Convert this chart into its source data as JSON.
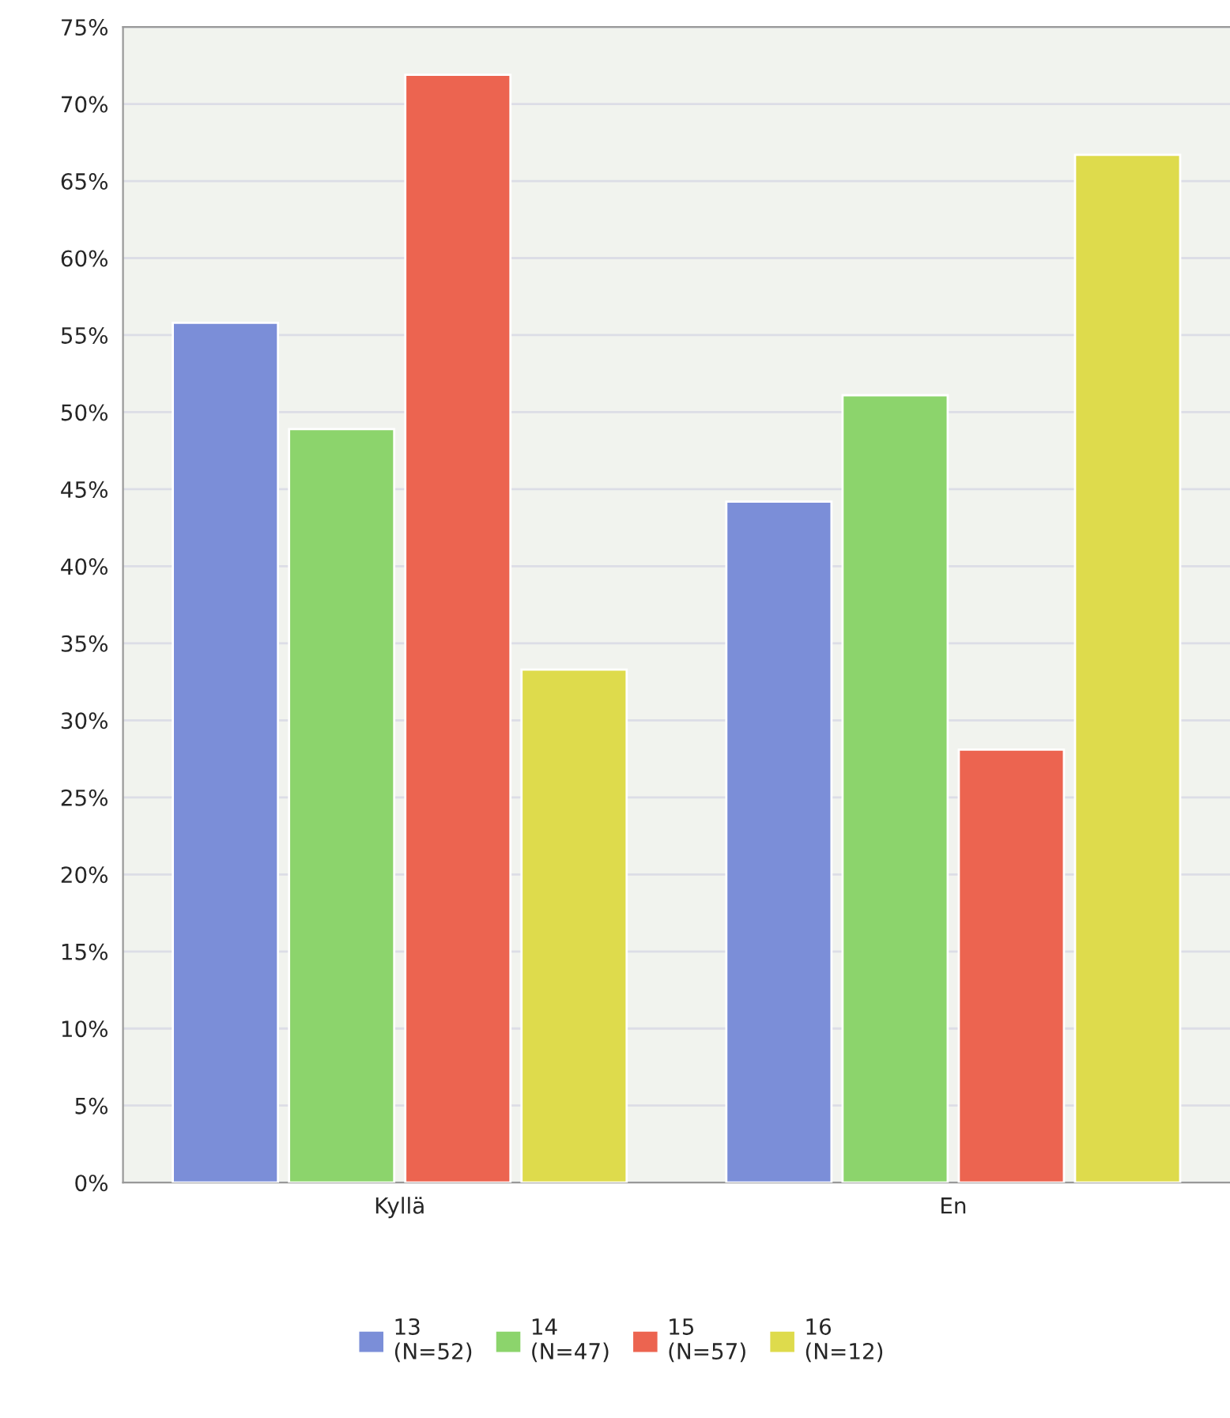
{
  "chart_data": {
    "type": "bar",
    "categories": [
      "Kyllä",
      "En"
    ],
    "series": [
      {
        "name": "13\n(N=52)",
        "color": "#7b8ed8",
        "values": [
          55.8,
          44.2
        ]
      },
      {
        "name": "14\n(N=47)",
        "color": "#8cd46c",
        "values": [
          48.9,
          51.1
        ]
      },
      {
        "name": "15\n(N=57)",
        "color": "#ec6450",
        "values": [
          71.9,
          28.1
        ]
      },
      {
        "name": "16\n(N=12)",
        "color": "#dedb4c",
        "values": [
          33.3,
          66.7
        ]
      }
    ],
    "ylim": [
      0,
      75
    ],
    "yticks": [
      {
        "value": 0,
        "label": "0%"
      },
      {
        "value": 5,
        "label": "5%"
      },
      {
        "value": 10,
        "label": "10%"
      },
      {
        "value": 15,
        "label": "15%"
      },
      {
        "value": 20,
        "label": "20%"
      },
      {
        "value": 25,
        "label": "25%"
      },
      {
        "value": 30,
        "label": "30%"
      },
      {
        "value": 35,
        "label": "35%"
      },
      {
        "value": 40,
        "label": "40%"
      },
      {
        "value": 45,
        "label": "45%"
      },
      {
        "value": 50,
        "label": "50%"
      },
      {
        "value": 55,
        "label": "55%"
      },
      {
        "value": 60,
        "label": "60%"
      },
      {
        "value": 65,
        "label": "65%"
      },
      {
        "value": 70,
        "label": "70%"
      },
      {
        "value": 75,
        "label": "75%"
      }
    ],
    "grid": "y",
    "legend": "bottom"
  }
}
